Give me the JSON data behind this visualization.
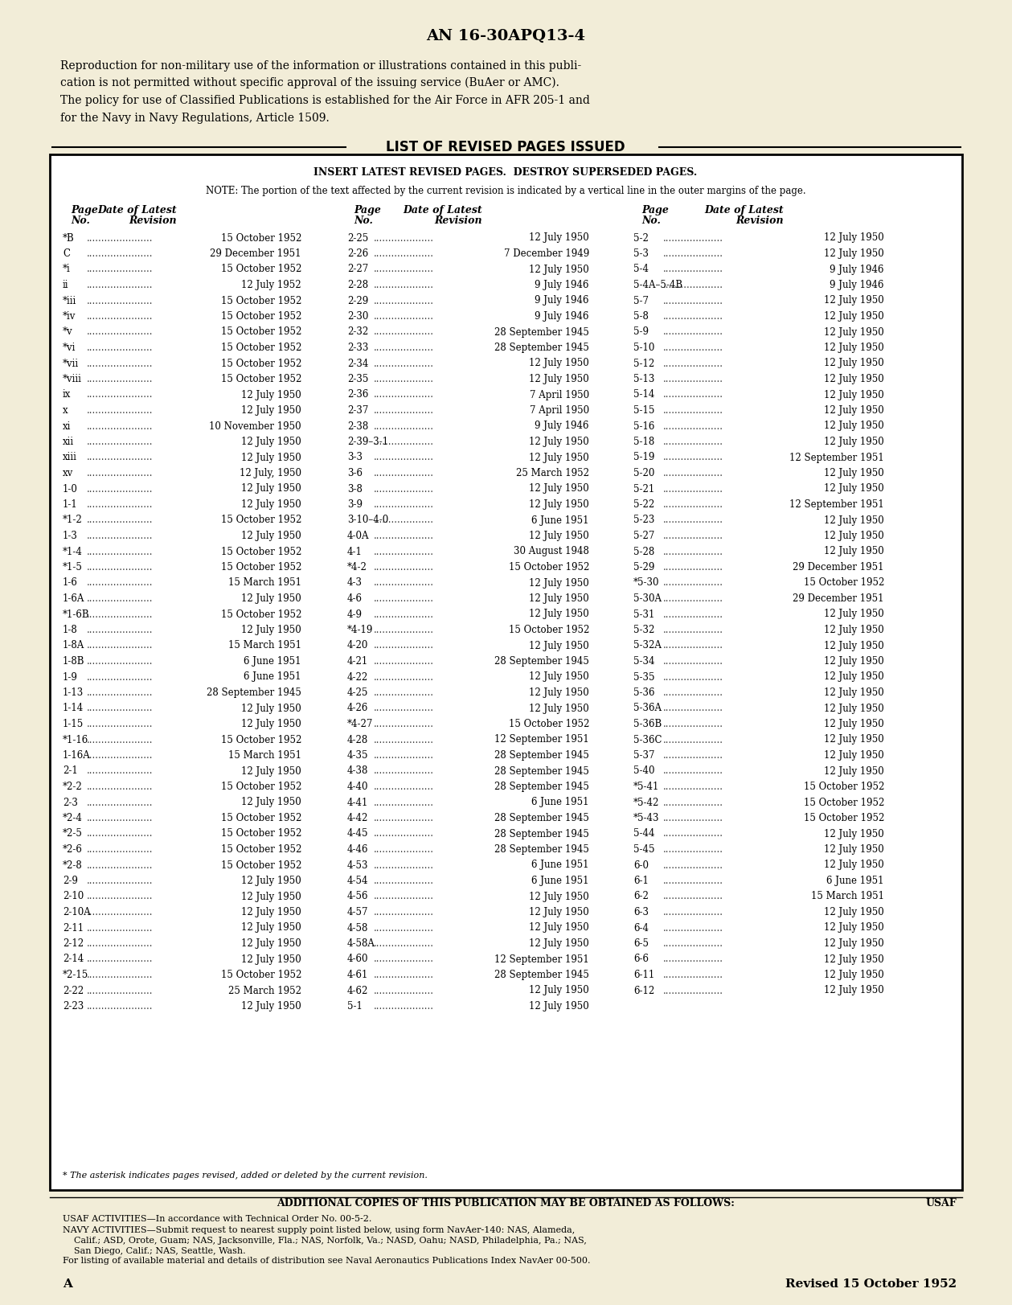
{
  "bg_color": "#f2edd8",
  "page_title": "AN 16-30APQ13-4",
  "intro_text": [
    "Reproduction for non-military use of the information or illustrations contained in this publi-",
    "cation is not permitted without specific approval of the issuing service (BuAer or AMC).",
    "The policy for use of Classified Publications is established for the Air Force in AFR 205-1 and",
    "for the Navy in Navy Regulations, Article 1509."
  ],
  "box_title": "LIST OF REVISED PAGES ISSUED",
  "box_subtitle": "INSERT LATEST REVISED PAGES.  DESTROY SUPERSEDED PAGES.",
  "box_note": "NOTE: The portion of the text affected by the current revision is indicated by a vertical line in the outer margins of the page.",
  "col1": [
    [
      "*B",
      "15 October 1952"
    ],
    [
      "C",
      "29 December 1951"
    ],
    [
      "*i",
      "15 October 1952"
    ],
    [
      "ii",
      "12 July 1952"
    ],
    [
      "*iii",
      "15 October 1952"
    ],
    [
      "*iv",
      "15 October 1952"
    ],
    [
      "*v",
      "15 October 1952"
    ],
    [
      "*vi",
      "15 October 1952"
    ],
    [
      "*vii",
      "15 October 1952"
    ],
    [
      "*viii",
      "15 October 1952"
    ],
    [
      "ix",
      "12 July 1950"
    ],
    [
      "x",
      "12 July 1950"
    ],
    [
      "xi",
      "10 November 1950"
    ],
    [
      "xii",
      "12 July 1950"
    ],
    [
      "xiii",
      "12 July 1950"
    ],
    [
      "xv",
      "12 July, 1950"
    ],
    [
      "1-0",
      "12 July 1950"
    ],
    [
      "1-1",
      "12 July 1950"
    ],
    [
      "*1-2",
      "15 October 1952"
    ],
    [
      "1-3",
      "12 July 1950"
    ],
    [
      "*1-4",
      "15 October 1952"
    ],
    [
      "*1-5",
      "15 October 1952"
    ],
    [
      "1-6",
      "15 March 1951"
    ],
    [
      "1-6A",
      "12 July 1950"
    ],
    [
      "*1-6B",
      "15 October 1952"
    ],
    [
      "1-8",
      "12 July 1950"
    ],
    [
      "1-8A",
      "15 March 1951"
    ],
    [
      "1-8B",
      "6 June 1951"
    ],
    [
      "1-9",
      "6 June 1951"
    ],
    [
      "1-13",
      "28 September 1945"
    ],
    [
      "1-14",
      "12 July 1950"
    ],
    [
      "1-15",
      "12 July 1950"
    ],
    [
      "*1-16",
      "15 October 1952"
    ],
    [
      "1-16A",
      "15 March 1951"
    ],
    [
      "2-1",
      "12 July 1950"
    ],
    [
      "*2-2",
      "15 October 1952"
    ],
    [
      "2-3",
      "12 July 1950"
    ],
    [
      "*2-4",
      "15 October 1952"
    ],
    [
      "*2-5",
      "15 October 1952"
    ],
    [
      "*2-6",
      "15 October 1952"
    ],
    [
      "*2-8",
      "15 October 1952"
    ],
    [
      "2-9",
      "12 July 1950"
    ],
    [
      "2-10",
      "12 July 1950"
    ],
    [
      "2-10A",
      "12 July 1950"
    ],
    [
      "2-11",
      "12 July 1950"
    ],
    [
      "2-12",
      "12 July 1950"
    ],
    [
      "2-14",
      "12 July 1950"
    ],
    [
      "*2-15",
      "15 October 1952"
    ],
    [
      "2-22",
      "25 March 1952"
    ],
    [
      "2-23",
      "12 July 1950"
    ]
  ],
  "col2": [
    [
      "2-25",
      "12 July 1950"
    ],
    [
      "2-26",
      "7 December 1949"
    ],
    [
      "2-27",
      "12 July 1950"
    ],
    [
      "2-28",
      "9 July 1946"
    ],
    [
      "2-29",
      "9 July 1946"
    ],
    [
      "2-30",
      "9 July 1946"
    ],
    [
      "2-32",
      "28 September 1945"
    ],
    [
      "2-33",
      "28 September 1945"
    ],
    [
      "2-34",
      "12 July 1950"
    ],
    [
      "2-35",
      "12 July 1950"
    ],
    [
      "2-36",
      "7 April 1950"
    ],
    [
      "2-37",
      "7 April 1950"
    ],
    [
      "2-38",
      "9 July 1946"
    ],
    [
      "2-39–3-1",
      "12 July 1950"
    ],
    [
      "3-3",
      "12 July 1950"
    ],
    [
      "3-6",
      "25 March 1952"
    ],
    [
      "3-8",
      "12 July 1950"
    ],
    [
      "3-9",
      "12 July 1950"
    ],
    [
      "3-10–4-0",
      "6 June 1951"
    ],
    [
      "4-0A",
      "12 July 1950"
    ],
    [
      "4-1",
      "30 August 1948"
    ],
    [
      "*4-2",
      "15 October 1952"
    ],
    [
      "4-3",
      "12 July 1950"
    ],
    [
      "4-6",
      "12 July 1950"
    ],
    [
      "4-9",
      "12 July 1950"
    ],
    [
      "*4-19",
      "15 October 1952"
    ],
    [
      "4-20",
      "12 July 1950"
    ],
    [
      "4-21",
      "28 September 1945"
    ],
    [
      "4-22",
      "12 July 1950"
    ],
    [
      "4-25",
      "12 July 1950"
    ],
    [
      "4-26",
      "12 July 1950"
    ],
    [
      "*4-27",
      "15 October 1952"
    ],
    [
      "4-28",
      "12 September 1951"
    ],
    [
      "4-35",
      "28 September 1945"
    ],
    [
      "4-38",
      "28 September 1945"
    ],
    [
      "4-40",
      "28 September 1945"
    ],
    [
      "4-41",
      "6 June 1951"
    ],
    [
      "4-42",
      "28 September 1945"
    ],
    [
      "4-45",
      "28 September 1945"
    ],
    [
      "4-46",
      "28 September 1945"
    ],
    [
      "4-53",
      "6 June 1951"
    ],
    [
      "4-54",
      "6 June 1951"
    ],
    [
      "4-56",
      "12 July 1950"
    ],
    [
      "4-57",
      "12 July 1950"
    ],
    [
      "4-58",
      "12 July 1950"
    ],
    [
      "4-58A",
      "12 July 1950"
    ],
    [
      "4-60",
      "12 September 1951"
    ],
    [
      "4-61",
      "28 September 1945"
    ],
    [
      "4-62",
      "12 July 1950"
    ],
    [
      "5-1",
      "12 July 1950"
    ]
  ],
  "col3": [
    [
      "5-2",
      "12 July 1950"
    ],
    [
      "5-3",
      "12 July 1950"
    ],
    [
      "5-4",
      "9 July 1946"
    ],
    [
      "5-4A–5-4B",
      "9 July 1946"
    ],
    [
      "5-7",
      "12 July 1950"
    ],
    [
      "5-8",
      "12 July 1950"
    ],
    [
      "5-9",
      "12 July 1950"
    ],
    [
      "5-10",
      "12 July 1950"
    ],
    [
      "5-12",
      "12 July 1950"
    ],
    [
      "5-13",
      "12 July 1950"
    ],
    [
      "5-14",
      "12 July 1950"
    ],
    [
      "5-15",
      "12 July 1950"
    ],
    [
      "5-16",
      "12 July 1950"
    ],
    [
      "5-18",
      "12 July 1950"
    ],
    [
      "5-19",
      "12 September 1951"
    ],
    [
      "5-20",
      "12 July 1950"
    ],
    [
      "5-21",
      "12 July 1950"
    ],
    [
      "5-22",
      "12 September 1951"
    ],
    [
      "5-23",
      "12 July 1950"
    ],
    [
      "5-27",
      "12 July 1950"
    ],
    [
      "5-28",
      "12 July 1950"
    ],
    [
      "5-29",
      "29 December 1951"
    ],
    [
      "*5-30",
      "15 October 1952"
    ],
    [
      "5-30A",
      "29 December 1951"
    ],
    [
      "5-31",
      "12 July 1950"
    ],
    [
      "5-32",
      "12 July 1950"
    ],
    [
      "5-32A",
      "12 July 1950"
    ],
    [
      "5-34",
      "12 July 1950"
    ],
    [
      "5-35",
      "12 July 1950"
    ],
    [
      "5-36",
      "12 July 1950"
    ],
    [
      "5-36A",
      "12 July 1950"
    ],
    [
      "5-36B",
      "12 July 1950"
    ],
    [
      "5-36C",
      "12 July 1950"
    ],
    [
      "5-37",
      "12 July 1950"
    ],
    [
      "5-40",
      "12 July 1950"
    ],
    [
      "*5-41",
      "15 October 1952"
    ],
    [
      "*5-42",
      "15 October 1952"
    ],
    [
      "*5-43",
      "15 October 1952"
    ],
    [
      "5-44",
      "12 July 1950"
    ],
    [
      "5-45",
      "12 July 1950"
    ],
    [
      "6-0",
      "12 July 1950"
    ],
    [
      "6-1",
      "6 June 1951"
    ],
    [
      "6-2",
      "15 March 1951"
    ],
    [
      "6-3",
      "12 July 1950"
    ],
    [
      "6-4",
      "12 July 1950"
    ],
    [
      "6-5",
      "12 July 1950"
    ],
    [
      "6-6",
      "12 July 1950"
    ],
    [
      "6-11",
      "12 July 1950"
    ],
    [
      "6-12",
      "12 July 1950"
    ]
  ],
  "footnote": "* The asterisk indicates pages revised, added or deleted by the current revision.",
  "additional_copies": "ADDITIONAL COPIES OF THIS PUBLICATION MAY BE OBTAINED AS FOLLOWS:",
  "usaf_label": "USAF",
  "usaf_line": "USAF ACTIVITIES—In accordance with Technical Order No. 00-5-2.",
  "navy_line": "NAVY ACTIVITIES—Submit request to nearest supply point listed below, using form NavAer-140: NAS, Alameda,",
  "navy_line2": "    Calif.; ASD, Orote, Guam; NAS, Jacksonville, Fla.; NAS, Norfolk, Va.; NASD, Oahu; NASD, Philadelphia, Pa.; NAS,",
  "navy_line3": "    San Diego, Calif.; NAS, Seattle, Wash.",
  "navy_line4": "For listing of available material and details of distribution see Naval Aeronautics Publications Index NavAer 00-500.",
  "bottom_left": "A",
  "bottom_right": "Revised 15 October 1952"
}
